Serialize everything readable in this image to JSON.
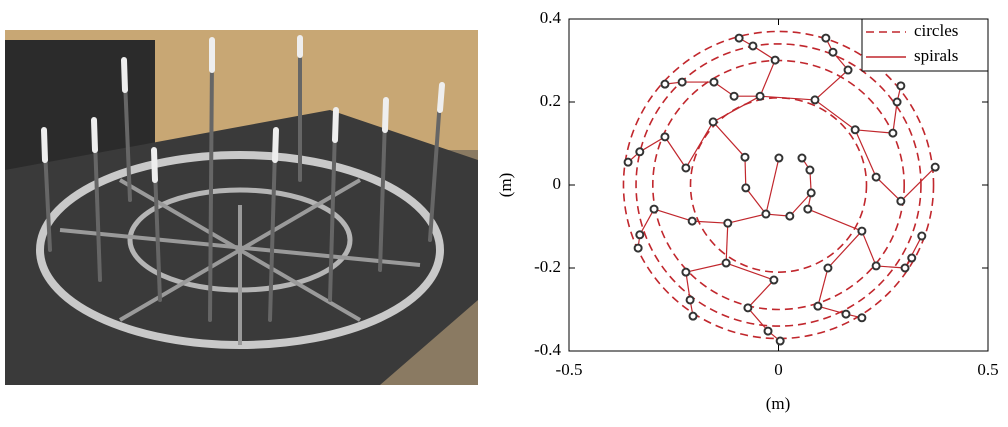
{
  "chart_data": {
    "type": "scatter",
    "xlabel": "(m)",
    "ylabel": "(m)",
    "xlim": [
      -0.5,
      0.5
    ],
    "ylim": [
      -0.4,
      0.4
    ],
    "xticks": [
      -0.5,
      0,
      0.5
    ],
    "yticks": [
      -0.4,
      -0.2,
      0,
      0.2,
      0.4
    ],
    "legend": "upper right",
    "series": [
      {
        "name": "circles",
        "color": "#c1272d",
        "radii": [
          0.21,
          0.3,
          0.34,
          0.37
        ]
      },
      {
        "name": "spirals",
        "color": "#c1272d",
        "marker_color": "#333333",
        "x": [
          -0.094,
          -0.061,
          0.113,
          0.13,
          -0.008,
          0.166,
          -0.154,
          -0.271,
          -0.23,
          -0.106,
          -0.044,
          0.087,
          0.292,
          0.283,
          0.183,
          -0.156,
          -0.271,
          0.273,
          -0.08,
          0.001,
          0.056,
          -0.221,
          -0.359,
          -0.331,
          0.075,
          0.233,
          0.374,
          -0.078,
          0.078,
          -0.297,
          0.292,
          -0.03,
          0.027,
          0.07,
          0.199,
          -0.206,
          -0.121,
          -0.331,
          -0.335,
          0.342,
          -0.221,
          -0.125,
          0.118,
          0.318,
          -0.011,
          0.233,
          0.302,
          -0.211,
          -0.073,
          0.094,
          -0.204,
          0.199,
          0.161,
          -0.025,
          0.004
        ],
        "y": [
          0.354,
          0.335,
          0.354,
          0.32,
          0.301,
          0.277,
          0.248,
          0.243,
          0.248,
          0.214,
          0.214,
          0.205,
          0.239,
          0.2,
          0.133,
          0.152,
          0.116,
          0.125,
          0.067,
          0.065,
          0.065,
          0.041,
          0.055,
          0.08,
          0.036,
          0.019,
          0.043,
          -0.007,
          -0.019,
          -0.058,
          -0.039,
          -0.07,
          -0.075,
          -0.058,
          -0.111,
          -0.087,
          -0.092,
          -0.12,
          -0.152,
          -0.123,
          -0.21,
          -0.188,
          -0.2,
          -0.176,
          -0.229,
          -0.195,
          -0.2,
          -0.277,
          -0.296,
          -0.292,
          -0.316,
          -0.32,
          -0.311,
          -0.352,
          -0.376
        ]
      }
    ]
  }
}
